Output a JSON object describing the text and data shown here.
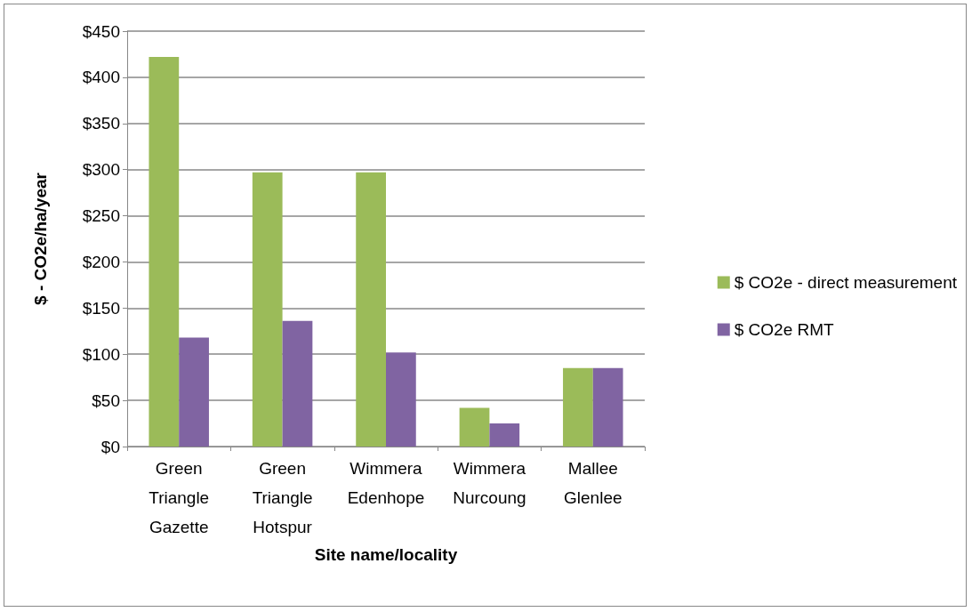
{
  "chart_data": {
    "type": "bar",
    "xlabel": "Site name/locality",
    "ylabel": "$ - CO2e/ha/year",
    "categories": [
      "Green Triangle Gazette",
      "Green Triangle Hotspur",
      "Wimmera Edenhope",
      "Wimmera Nurcoung",
      "Mallee Glenlee"
    ],
    "series": [
      {
        "name": "$ CO2e - direct measurement",
        "color": "#9bbb59",
        "values": [
          422,
          297,
          297,
          42,
          85
        ]
      },
      {
        "name": "$ CO2e RMT",
        "color": "#8064a2",
        "values": [
          118,
          136,
          102,
          25,
          85
        ]
      }
    ],
    "ylim": [
      0,
      450
    ],
    "yticks": [
      {
        "value": 0,
        "label": "$0"
      },
      {
        "value": 50,
        "label": "$50"
      },
      {
        "value": 100,
        "label": "$100"
      },
      {
        "value": 150,
        "label": "$150"
      },
      {
        "value": 200,
        "label": "$200"
      },
      {
        "value": 250,
        "label": "$250"
      },
      {
        "value": 300,
        "label": "$300"
      },
      {
        "value": 350,
        "label": "$350"
      },
      {
        "value": 400,
        "label": "$400"
      },
      {
        "value": 450,
        "label": "$450"
      }
    ],
    "grid": "y",
    "legend": "right"
  }
}
